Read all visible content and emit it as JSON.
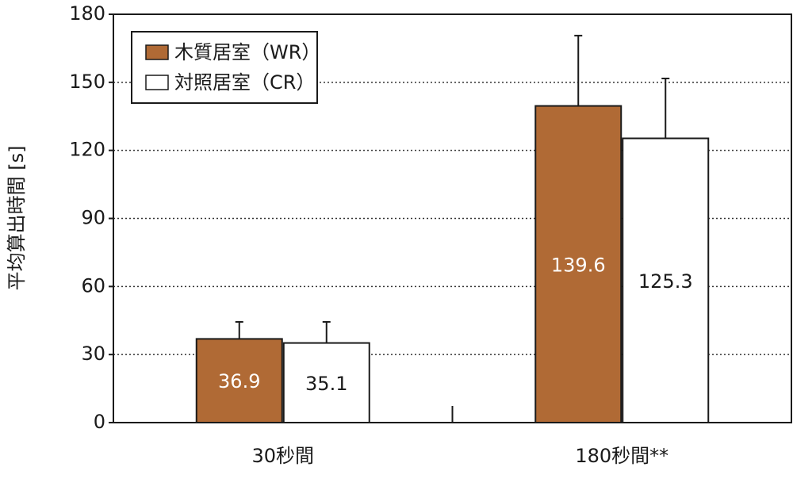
{
  "chart_data": {
    "type": "bar",
    "y_label": "平均算出時間 [s]",
    "categories": [
      "30秒間",
      "180秒間**"
    ],
    "series": [
      {
        "name": "木質居室（WR）",
        "color": "#b06a35",
        "label_color": "#ffffff",
        "values": [
          36.9,
          139.6
        ],
        "errors": [
          7.5,
          31.0
        ]
      },
      {
        "name": "対照居室（CR）",
        "color": "#ffffff",
        "label_color": "#1a1a1a",
        "values": [
          35.1,
          125.3
        ],
        "errors": [
          9.3,
          26.4
        ]
      }
    ],
    "ylim": [
      0,
      180
    ],
    "yticks": [
      0,
      30,
      60,
      90,
      120,
      150,
      180
    ],
    "grid": true,
    "legend": "top-left"
  }
}
